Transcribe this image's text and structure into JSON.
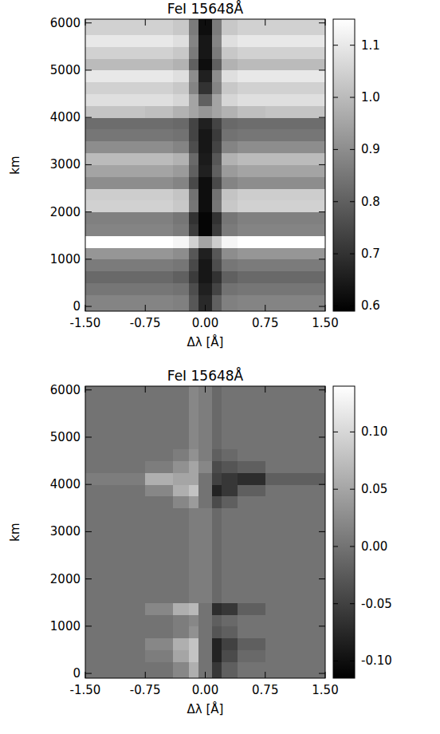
{
  "chart_data": [
    {
      "type": "heatmap",
      "title": "FeI 15648Å",
      "x_label": "Δλ [Å]",
      "y_label": "km",
      "xlim": [
        -1.5,
        1.5
      ],
      "xticks": [
        {
          "value": -1.5,
          "label": "-1.50"
        },
        {
          "value": -0.75,
          "label": "-0.75"
        },
        {
          "value": 0,
          "label": "0.00"
        },
        {
          "value": 0.75,
          "label": "0.75"
        },
        {
          "value": 1.5,
          "label": "1.50"
        }
      ],
      "ylim": [
        -100,
        6080
      ],
      "yticks": [
        0,
        1000,
        2000,
        3000,
        4000,
        5000,
        6000
      ],
      "x_edges": [
        -1.5,
        -0.75,
        -0.4,
        -0.2,
        -0.08,
        0.08,
        0.2,
        0.4,
        0.75,
        1.5
      ],
      "y_edges": [
        -100,
        250,
        500,
        750,
        1000,
        1250,
        1500,
        1750,
        2000,
        2250,
        2500,
        2750,
        3000,
        3250,
        3500,
        3750,
        4000,
        4250,
        4500,
        4750,
        5000,
        5250,
        5500,
        5750,
        6080
      ],
      "cells": [
        [
          0.88,
          0.88,
          0.87,
          0.78,
          0.68,
          0.8,
          0.87,
          0.88,
          0.88
        ],
        [
          0.85,
          0.85,
          0.84,
          0.76,
          0.66,
          0.74,
          0.84,
          0.85,
          0.85
        ],
        [
          0.82,
          0.82,
          0.8,
          0.72,
          0.64,
          0.7,
          0.8,
          0.82,
          0.82
        ],
        [
          0.86,
          0.86,
          0.85,
          0.75,
          0.64,
          0.76,
          0.85,
          0.86,
          0.86
        ],
        [
          0.92,
          0.92,
          0.9,
          0.78,
          0.66,
          0.78,
          0.9,
          0.92,
          0.92
        ],
        [
          1.15,
          1.15,
          1.13,
          1.05,
          0.95,
          1.04,
          1.13,
          1.15,
          1.15
        ],
        [
          0.88,
          0.88,
          0.86,
          0.72,
          0.6,
          0.72,
          0.86,
          0.88,
          0.88
        ],
        [
          0.87,
          0.87,
          0.85,
          0.7,
          0.6,
          0.7,
          0.85,
          0.87,
          0.87
        ],
        [
          1.05,
          1.05,
          1.03,
          0.85,
          0.62,
          0.85,
          1.03,
          1.05,
          1.05
        ],
        [
          1.04,
          1.04,
          1.02,
          0.84,
          0.62,
          0.84,
          1.02,
          1.04,
          1.04
        ],
        [
          0.9,
          0.9,
          0.88,
          0.75,
          0.62,
          0.75,
          0.88,
          0.9,
          0.9
        ],
        [
          0.95,
          0.95,
          0.93,
          0.8,
          0.66,
          0.8,
          0.93,
          0.95,
          0.95
        ],
        [
          1.0,
          1.0,
          0.98,
          0.82,
          0.65,
          0.78,
          0.98,
          1.0,
          1.0
        ],
        [
          0.9,
          0.9,
          0.88,
          0.76,
          0.64,
          0.74,
          0.88,
          0.9,
          0.9
        ],
        [
          0.85,
          0.85,
          0.84,
          0.74,
          0.64,
          0.72,
          0.84,
          0.85,
          0.85
        ],
        [
          0.83,
          0.83,
          0.82,
          0.74,
          0.66,
          0.74,
          0.82,
          0.83,
          0.83
        ],
        [
          1.02,
          1.01,
          0.98,
          0.95,
          0.92,
          0.95,
          0.98,
          1.01,
          1.02
        ],
        [
          1.08,
          1.08,
          1.06,
          0.95,
          0.8,
          0.95,
          1.06,
          1.08,
          1.08
        ],
        [
          1.05,
          1.05,
          1.03,
          0.88,
          0.7,
          0.88,
          1.03,
          1.05,
          1.05
        ],
        [
          1.1,
          1.1,
          1.08,
          0.9,
          0.66,
          0.9,
          1.08,
          1.1,
          1.1
        ],
        [
          1.0,
          1.0,
          0.98,
          0.8,
          0.62,
          0.8,
          0.98,
          1.0,
          1.0
        ],
        [
          1.05,
          1.05,
          1.03,
          0.86,
          0.64,
          0.86,
          1.03,
          1.05,
          1.05
        ],
        [
          1.1,
          1.1,
          1.08,
          0.88,
          0.64,
          0.88,
          1.08,
          1.1,
          1.1
        ],
        [
          1.05,
          1.05,
          1.03,
          0.86,
          0.62,
          0.86,
          1.03,
          1.05,
          1.05
        ]
      ],
      "colorbar_range": [
        0.59,
        1.15
      ],
      "colorbar_ticks": [
        0.6,
        0.7,
        0.8,
        0.9,
        {
          "value": 1,
          "label": "1.0"
        },
        1.1
      ]
    },
    {
      "type": "heatmap",
      "title": "FeI 15648Å",
      "x_label": "Δλ [Å]",
      "y_label": "km",
      "xlim": [
        -1.5,
        1.5
      ],
      "xticks": [
        {
          "value": -1.5,
          "label": "-1.50"
        },
        {
          "value": -0.75,
          "label": "-0.75"
        },
        {
          "value": 0,
          "label": "0.00"
        },
        {
          "value": 0.75,
          "label": "0.75"
        },
        {
          "value": 1.5,
          "label": "1.50"
        }
      ],
      "ylim": [
        -100,
        6080
      ],
      "yticks": [
        0,
        1000,
        2000,
        3000,
        4000,
        5000,
        6000
      ],
      "x_edges": [
        -1.5,
        -0.75,
        -0.4,
        -0.2,
        -0.08,
        0.08,
        0.2,
        0.4,
        0.75,
        1.5
      ],
      "y_edges": [
        -100,
        250,
        500,
        750,
        1000,
        1250,
        1500,
        1750,
        2000,
        2250,
        2500,
        2750,
        3000,
        3250,
        3500,
        3750,
        4000,
        4250,
        4500,
        4750,
        5000,
        5250,
        5500,
        5750,
        6080
      ],
      "cells": [
        [
          0,
          0,
          0.02,
          0.06,
          0,
          -0.06,
          -0.02,
          0,
          0
        ],
        [
          0,
          0.01,
          0.05,
          0.08,
          0,
          -0.08,
          -0.04,
          -0.01,
          0
        ],
        [
          0,
          0.02,
          0.06,
          0.08,
          0,
          -0.08,
          -0.05,
          -0.02,
          0
        ],
        [
          0,
          0,
          0.01,
          0.03,
          0,
          -0.03,
          -0.02,
          0,
          0
        ],
        [
          0,
          0,
          0.01,
          0.02,
          0,
          -0.02,
          -0.01,
          0,
          0
        ],
        [
          0,
          0.02,
          0.06,
          0.07,
          0,
          -0.07,
          -0.06,
          -0.02,
          0
        ],
        [
          0,
          0,
          0,
          0.01,
          0.01,
          -0.01,
          0,
          0,
          0
        ],
        [
          0,
          0,
          0,
          0.01,
          0.01,
          -0.01,
          0,
          0,
          0
        ],
        [
          0,
          0,
          0,
          0.01,
          0.01,
          -0.01,
          0,
          0,
          0
        ],
        [
          0,
          0,
          0,
          0.01,
          0.01,
          -0.01,
          0,
          0,
          0
        ],
        [
          0,
          0,
          0,
          0.01,
          0.01,
          -0.01,
          0,
          0,
          0
        ],
        [
          0,
          0,
          0,
          0.01,
          0.01,
          -0.01,
          0,
          0,
          0
        ],
        [
          0,
          0,
          0,
          0.01,
          0.01,
          -0.01,
          0,
          0,
          0
        ],
        [
          0,
          0,
          0,
          0.01,
          0.01,
          -0.01,
          0,
          0,
          0
        ],
        [
          0,
          0,
          0.02,
          0.04,
          0,
          -0.04,
          -0.02,
          0,
          0
        ],
        [
          0,
          0.02,
          0.06,
          0.08,
          0,
          -0.08,
          -0.06,
          -0.02,
          0
        ],
        [
          0.01,
          0.06,
          0.05,
          0.05,
          0,
          -0.05,
          -0.06,
          -0.07,
          -0.02
        ],
        [
          0,
          0.01,
          0.03,
          0.05,
          0.02,
          -0.04,
          -0.03,
          -0.02,
          0
        ],
        [
          0,
          0,
          0.01,
          0.03,
          0.01,
          -0.02,
          -0.01,
          0,
          0
        ],
        [
          0,
          0,
          0,
          0.02,
          0.01,
          -0.01,
          0,
          0,
          0
        ],
        [
          0,
          0,
          0,
          0.02,
          0.01,
          -0.01,
          0,
          0,
          0
        ],
        [
          0,
          0,
          0,
          0.02,
          0.01,
          -0.01,
          0,
          0,
          0
        ],
        [
          0,
          0,
          0,
          0.02,
          0.01,
          -0.01,
          0,
          0,
          0
        ],
        [
          0,
          0,
          0,
          0.02,
          0.01,
          -0.01,
          0,
          0,
          0
        ]
      ],
      "colorbar_range": [
        -0.115,
        0.14
      ],
      "colorbar_ticks": [
        {
          "value": -0.1,
          "label": "-0.10"
        },
        {
          "value": -0.05,
          "label": "-0.05"
        },
        {
          "value": 0,
          "label": "0.00"
        },
        {
          "value": 0.05,
          "label": "0.05"
        },
        {
          "value": 0.1,
          "label": "0.10"
        }
      ]
    }
  ]
}
